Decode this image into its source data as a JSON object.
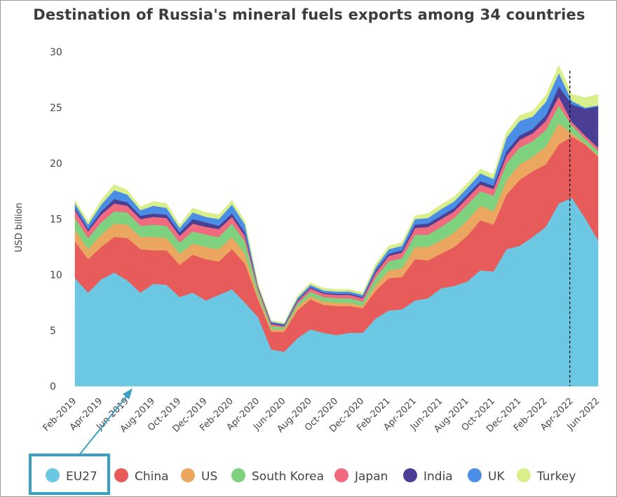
{
  "chart_data": {
    "type": "area",
    "stacked": true,
    "title": "Destination of Russia's mineral fuels exports among 34 countries",
    "xlabel": "",
    "ylabel": "USD billion",
    "ylim": [
      0,
      30
    ],
    "yticks": [
      0,
      5,
      10,
      15,
      20,
      25,
      30
    ],
    "grid": false,
    "legend_position": "bottom",
    "tick_labels": [
      "Feb-2019",
      "Apr-2019",
      "Jun-2019",
      "Aug-2019",
      "Oct-2019",
      "Dec-2019",
      "Feb-2020",
      "Apr-2020",
      "Jun-2020",
      "Aug-2020",
      "Oct-2020",
      "Dec-2020",
      "Feb-2021",
      "Apr-2021",
      "Jun-2021",
      "Aug-2021",
      "Oct-2021",
      "Dec-2021",
      "Feb-2022",
      "Apr-2022",
      "Jun-2022"
    ],
    "x": [
      "Feb-2019",
      "Mar-2019",
      "Apr-2019",
      "May-2019",
      "Jun-2019",
      "Jul-2019",
      "Aug-2019",
      "Sep-2019",
      "Oct-2019",
      "Nov-2019",
      "Dec-2019",
      "Jan-2020",
      "Feb-2020",
      "Mar-2020",
      "Apr-2020",
      "May-2020",
      "Jun-2020",
      "Jul-2020",
      "Aug-2020",
      "Sep-2020",
      "Oct-2020",
      "Nov-2020",
      "Dec-2020",
      "Jan-2021",
      "Feb-2021",
      "Mar-2021",
      "Apr-2021",
      "May-2021",
      "Jun-2021",
      "Jul-2021",
      "Aug-2021",
      "Sep-2021",
      "Oct-2021",
      "Nov-2021",
      "Dec-2021",
      "Jan-2022",
      "Feb-2022",
      "Mar-2022",
      "Apr-2022",
      "May-2022",
      "Jun-2022"
    ],
    "series": [
      {
        "name": "EU27",
        "color": "#6cc8e2",
        "values": [
          9.7,
          8.4,
          9.6,
          10.2,
          9.5,
          8.4,
          9.2,
          9.1,
          8.0,
          8.4,
          7.7,
          8.2,
          8.7,
          7.5,
          6.2,
          3.3,
          3.1,
          4.3,
          5.1,
          4.8,
          4.6,
          4.8,
          4.8,
          6.1,
          6.8,
          6.9,
          7.7,
          7.9,
          8.8,
          9.0,
          9.4,
          10.4,
          10.3,
          12.3,
          12.6,
          13.4,
          14.3,
          16.4,
          16.9,
          15.1,
          13.1
        ]
      },
      {
        "name": "China",
        "color": "#e85b5b",
        "values": [
          3.3,
          3.0,
          2.9,
          3.2,
          3.8,
          3.9,
          3.0,
          3.1,
          2.9,
          3.4,
          3.7,
          3.0,
          3.6,
          3.5,
          1.6,
          1.6,
          1.8,
          2.5,
          2.7,
          2.5,
          2.6,
          2.4,
          2.2,
          2.5,
          2.9,
          2.9,
          3.7,
          3.4,
          3.1,
          3.5,
          4.1,
          4.5,
          4.2,
          4.9,
          5.9,
          5.9,
          5.6,
          5.3,
          5.5,
          6.6,
          7.5
        ]
      },
      {
        "name": "US",
        "color": "#eba760",
        "values": [
          1.0,
          0.9,
          1.1,
          1.2,
          1.2,
          1.1,
          1.2,
          1.1,
          1.0,
          1.0,
          1.1,
          1.1,
          1.1,
          0.9,
          0.3,
          0.2,
          0.2,
          0.3,
          0.3,
          0.3,
          0.3,
          0.3,
          0.2,
          0.5,
          0.7,
          0.8,
          1.1,
          1.2,
          1.2,
          1.3,
          1.4,
          1.3,
          1.2,
          1.3,
          1.4,
          1.3,
          1.6,
          1.9,
          0.3,
          0.1,
          0.1
        ]
      },
      {
        "name": "South Korea",
        "color": "#7ed17e",
        "values": [
          1.1,
          1.0,
          1.1,
          1.1,
          1.1,
          1.0,
          1.1,
          1.1,
          1.0,
          1.1,
          1.1,
          1.1,
          1.2,
          1.1,
          0.5,
          0.3,
          0.2,
          0.3,
          0.4,
          0.4,
          0.4,
          0.4,
          0.4,
          0.7,
          0.8,
          0.9,
          1.1,
          1.1,
          1.2,
          1.3,
          1.4,
          1.3,
          1.4,
          1.5,
          1.5,
          1.4,
          1.5,
          1.6,
          0.7,
          0.4,
          0.4
        ]
      },
      {
        "name": "Japan",
        "color": "#f06a80",
        "values": [
          0.7,
          0.6,
          0.7,
          0.7,
          0.6,
          0.6,
          0.7,
          0.7,
          0.6,
          0.7,
          0.7,
          0.7,
          0.6,
          0.5,
          0.2,
          0.2,
          0.1,
          0.2,
          0.3,
          0.3,
          0.3,
          0.3,
          0.3,
          0.4,
          0.5,
          0.5,
          0.6,
          0.7,
          0.7,
          0.6,
          0.6,
          0.6,
          0.6,
          0.7,
          0.7,
          0.7,
          0.8,
          0.8,
          0.3,
          0.3,
          0.3
        ]
      },
      {
        "name": "India",
        "color": "#4a3f94",
        "values": [
          0.2,
          0.2,
          0.3,
          0.4,
          0.3,
          0.3,
          0.3,
          0.3,
          0.3,
          0.4,
          0.4,
          0.3,
          0.3,
          0.3,
          0.1,
          0.1,
          0.1,
          0.1,
          0.1,
          0.1,
          0.1,
          0.1,
          0.1,
          0.2,
          0.2,
          0.2,
          0.3,
          0.3,
          0.3,
          0.3,
          0.3,
          0.3,
          0.3,
          0.4,
          0.4,
          0.4,
          0.5,
          0.9,
          1.6,
          2.4,
          3.7
        ]
      },
      {
        "name": "UK",
        "color": "#4a8ee6",
        "values": [
          0.4,
          0.4,
          0.6,
          0.8,
          0.7,
          0.5,
          0.7,
          0.6,
          0.4,
          0.6,
          0.5,
          0.6,
          0.8,
          0.7,
          0.1,
          0.1,
          0.1,
          0.2,
          0.2,
          0.2,
          0.2,
          0.2,
          0.2,
          0.3,
          0.4,
          0.4,
          0.5,
          0.5,
          0.6,
          0.6,
          0.6,
          0.7,
          0.6,
          1.2,
          1.3,
          1.1,
          1.2,
          1.2,
          0.3,
          0.1,
          0.1
        ]
      },
      {
        "name": "Turkey",
        "color": "#d9ef8c",
        "values": [
          0.3,
          0.3,
          0.4,
          0.5,
          0.4,
          0.3,
          0.4,
          0.4,
          0.3,
          0.4,
          0.4,
          0.4,
          0.4,
          0.3,
          0.2,
          0.1,
          0.1,
          0.2,
          0.2,
          0.2,
          0.2,
          0.2,
          0.2,
          0.3,
          0.3,
          0.3,
          0.3,
          0.4,
          0.4,
          0.4,
          0.4,
          0.4,
          0.4,
          0.5,
          0.5,
          0.5,
          0.6,
          0.7,
          0.6,
          0.9,
          1.0
        ]
      }
    ],
    "annotations": [
      {
        "type": "vertical-dashed-line",
        "at": "Apr-2022"
      },
      {
        "type": "highlight-box-with-arrow",
        "legend_item": "EU27"
      }
    ]
  }
}
